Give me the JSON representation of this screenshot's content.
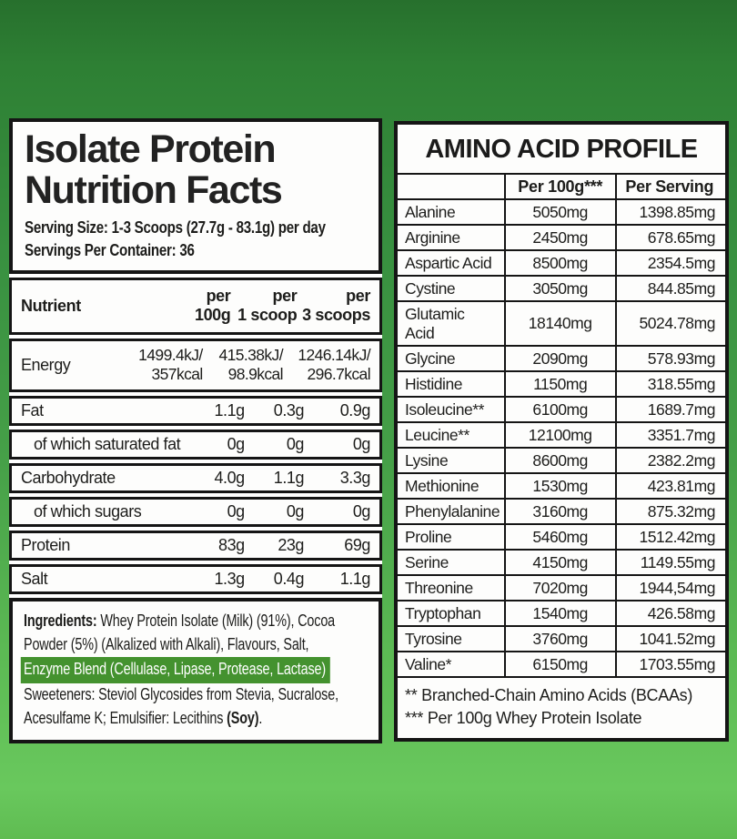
{
  "colors": {
    "bg_top": "#2e8034",
    "bg_bottom": "#69c85d",
    "panel_bg": "#fdfdfc",
    "border": "#151515",
    "highlight_green": "#44922f",
    "highlight_text": "#ffffff"
  },
  "left_panel": {
    "title_line1": "Isolate Protein",
    "title_line2": "Nutrition Facts",
    "serving_size": "Serving Size: 1-3 Scoops (27.7g - 83.1g) per day",
    "servings_per_container": "Servings Per Container: 36",
    "table": {
      "header": {
        "nutrient": "Nutrient",
        "per_100g": "per\n100g",
        "per_1_scoop": "per\n1 scoop",
        "per_3_scoops": "per\n3 scoops"
      },
      "rows": [
        {
          "name": "Energy",
          "per_100g": "1499.4kJ/\n357kcal",
          "per_1_scoop": "415.38kJ/\n98.9kcal",
          "per_3_scoops": "1246.14kJ/\n296.7kcal",
          "tall": true,
          "indent": false
        },
        {
          "name": "Fat",
          "per_100g": "1.1g",
          "per_1_scoop": "0.3g",
          "per_3_scoops": "0.9g",
          "tall": false,
          "indent": false
        },
        {
          "name": "of which saturated fat",
          "per_100g": "0g",
          "per_1_scoop": "0g",
          "per_3_scoops": "0g",
          "tall": false,
          "indent": true
        },
        {
          "name": "Carbohydrate",
          "per_100g": "4.0g",
          "per_1_scoop": "1.1g",
          "per_3_scoops": "3.3g",
          "tall": false,
          "indent": false
        },
        {
          "name": "of which sugars",
          "per_100g": "0g",
          "per_1_scoop": "0g",
          "per_3_scoops": "0g",
          "tall": false,
          "indent": true
        },
        {
          "name": "Protein",
          "per_100g": "83g",
          "per_1_scoop": "23g",
          "per_3_scoops": "69g",
          "tall": false,
          "indent": false
        },
        {
          "name": "Salt",
          "per_100g": "1.3g",
          "per_1_scoop": "0.4g",
          "per_3_scoops": "1.1g",
          "tall": false,
          "indent": false
        }
      ]
    },
    "ingredients": {
      "label": "Ingredients:",
      "line1_rest": " Whey Protein Isolate (Milk) (91%), Cocoa",
      "line2": "Powder (5%) (Alkalized with Alkali), Flavours, Salt,",
      "highlight": "Enzyme Blend (Cellulase, Lipase, Protease, Lactase)",
      "line4": "Sweeteners: Steviol Glycosides from Stevia, Sucralose,",
      "line5_pre": "Acesulfame K; Emulsifier: Lecithins ",
      "line5_bold": "(Soy)",
      "line5_end": "."
    }
  },
  "right_panel": {
    "title": "AMINO ACID PROFILE",
    "table": {
      "header": {
        "name": "",
        "per_100g": "Per 100g***",
        "per_serving": "Per Serving"
      },
      "rows": [
        {
          "name": "Alanine",
          "per_100g": "5050mg",
          "per_serving": "1398.85mg"
        },
        {
          "name": "Arginine",
          "per_100g": "2450mg",
          "per_serving": "678.65mg"
        },
        {
          "name": "Aspartic Acid",
          "per_100g": "8500mg",
          "per_serving": "2354.5mg"
        },
        {
          "name": "Cystine",
          "per_100g": "3050mg",
          "per_serving": "844.85mg"
        },
        {
          "name": "Glutamic Acid",
          "per_100g": "18140mg",
          "per_serving": "5024.78mg"
        },
        {
          "name": "Glycine",
          "per_100g": "2090mg",
          "per_serving": "578.93mg"
        },
        {
          "name": "Histidine",
          "per_100g": "1150mg",
          "per_serving": "318.55mg"
        },
        {
          "name": "Isoleucine**",
          "per_100g": "6100mg",
          "per_serving": "1689.7mg"
        },
        {
          "name": "Leucine**",
          "per_100g": "12100mg",
          "per_serving": "3351.7mg"
        },
        {
          "name": "Lysine",
          "per_100g": "8600mg",
          "per_serving": "2382.2mg"
        },
        {
          "name": "Methionine",
          "per_100g": "1530mg",
          "per_serving": "423.81mg"
        },
        {
          "name": "Phenylalanine",
          "per_100g": "3160mg",
          "per_serving": "875.32mg"
        },
        {
          "name": "Proline",
          "per_100g": "5460mg",
          "per_serving": "1512.42mg"
        },
        {
          "name": "Serine",
          "per_100g": "4150mg",
          "per_serving": "1149.55mg"
        },
        {
          "name": "Threonine",
          "per_100g": "7020mg",
          "per_serving": "1944,54mg"
        },
        {
          "name": "Tryptophan",
          "per_100g": "1540mg",
          "per_serving": "426.58mg"
        },
        {
          "name": "Tyrosine",
          "per_100g": "3760mg",
          "per_serving": "1041.52mg"
        },
        {
          "name": "Valine*",
          "per_100g": "6150mg",
          "per_serving": "1703.55mg"
        }
      ]
    },
    "footnotes": [
      "** Branched-Chain Amino Acids (BCAAs)",
      "*** Per 100g Whey Protein Isolate"
    ]
  }
}
